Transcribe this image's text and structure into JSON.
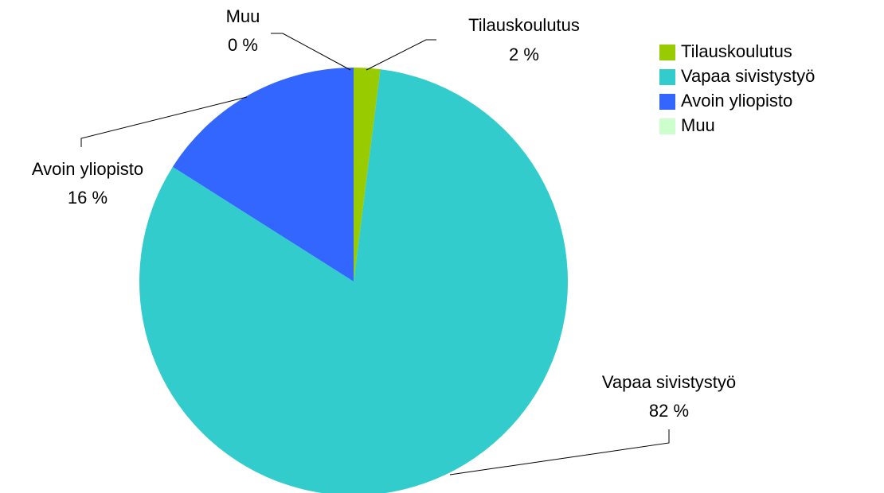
{
  "chart_data": {
    "type": "pie",
    "categories": [
      "Tilauskoulutus",
      "Vapaa sivistystyö",
      "Avoin yliopisto",
      "Muu"
    ],
    "values": [
      2,
      82,
      16,
      0
    ],
    "value_labels": [
      "2 %",
      "82 %",
      "16 %",
      "0 %"
    ],
    "colors": [
      "#99cc00",
      "#33cccc",
      "#3366ff",
      "#ccffcc"
    ],
    "legend": "right"
  }
}
